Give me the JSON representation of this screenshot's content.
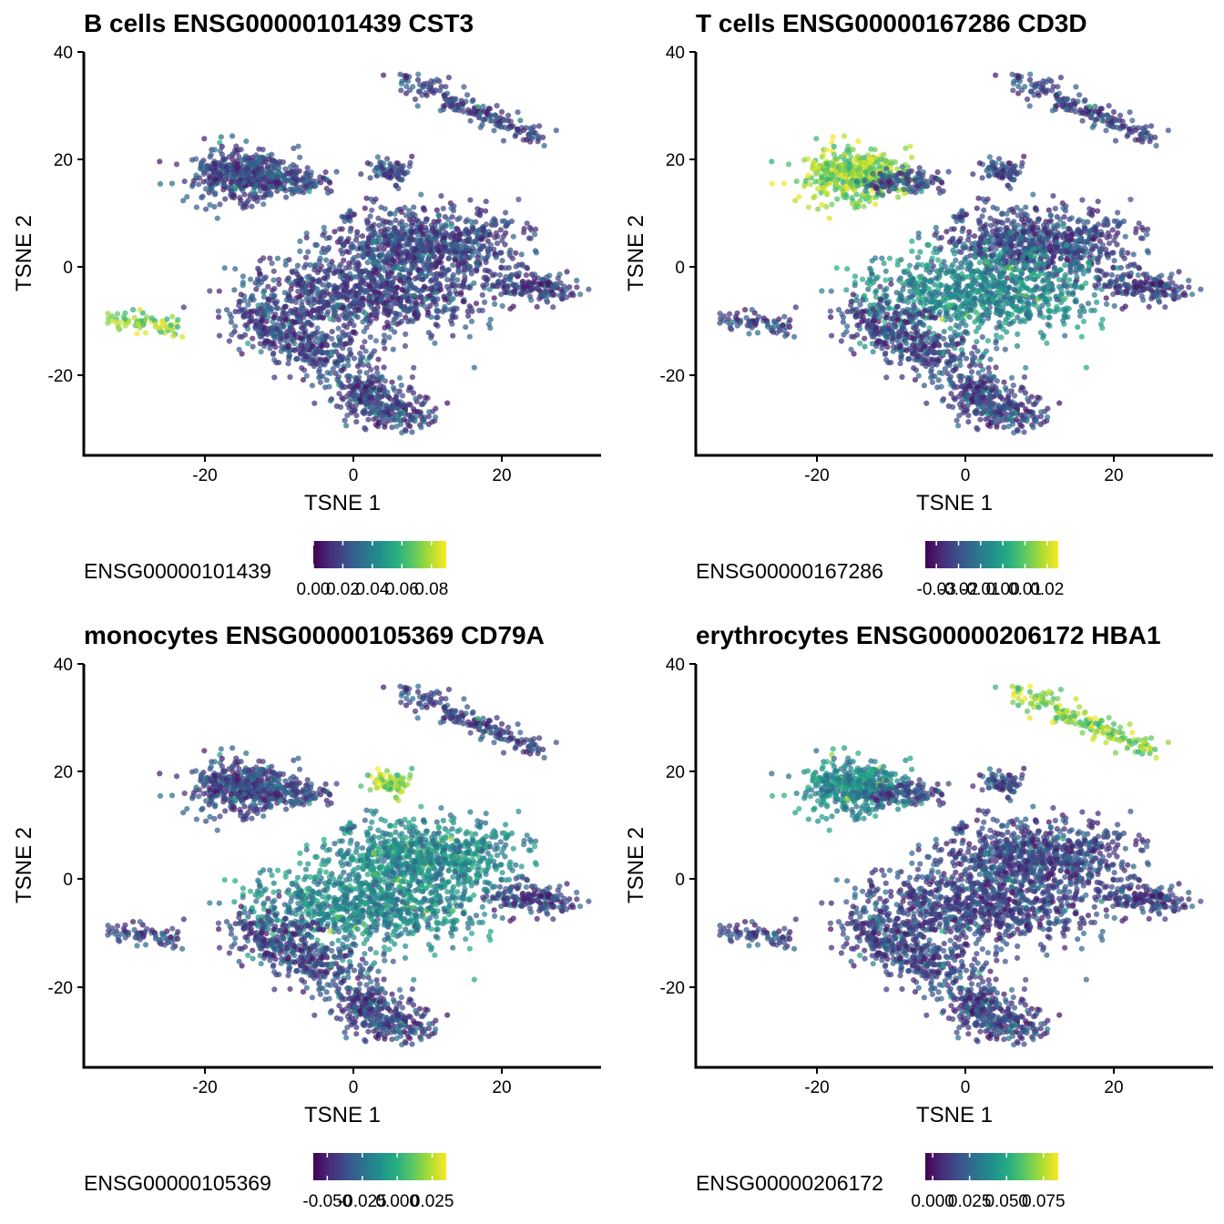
{
  "chart_data": [
    {
      "type": "scatter",
      "title": "B cells ENSG00000101439 CST3",
      "xlabel": "TSNE 1",
      "ylabel": "TSNE 2",
      "xticks": [
        "-20",
        "0",
        "20"
      ],
      "yticks": [
        "-20",
        "0",
        "20",
        "40"
      ],
      "legend": {
        "title": "ENSG00000101439",
        "ticks": [
          "0.00",
          "0.02",
          "0.04",
          "0.06",
          "0.08"
        ],
        "range": [
          0,
          0.09
        ]
      },
      "high_clusters": [
        "left-small"
      ],
      "mid_clusters": []
    },
    {
      "type": "scatter",
      "title": "T cells ENSG00000167286 CD3D",
      "xlabel": "TSNE 1",
      "ylabel": "TSNE 2",
      "xticks": [
        "-20",
        "0",
        "20"
      ],
      "yticks": [
        "-20",
        "0",
        "20",
        "40"
      ],
      "legend": {
        "title": "ENSG00000167286",
        "ticks": [
          "-0.03",
          "-0.02",
          "-0.01",
          "0.00",
          "0.01",
          "0.02"
        ],
        "range": [
          -0.035,
          0.025
        ]
      },
      "high_clusters": [
        "upper-left"
      ],
      "mid_clusters": [
        "main-mid"
      ]
    },
    {
      "type": "scatter",
      "title": "monocytes ENSG00000105369 CD79A",
      "xlabel": "TSNE 1",
      "ylabel": "TSNE 2",
      "xticks": [
        "-20",
        "0",
        "20"
      ],
      "yticks": [
        "-20",
        "0",
        "20",
        "40"
      ],
      "legend": {
        "title": "ENSG00000105369",
        "ticks": [
          "-0.050",
          "-0.025",
          "0.000",
          "0.025"
        ],
        "range": [
          -0.06,
          0.035
        ]
      },
      "high_clusters": [
        "small-round"
      ],
      "mid_clusters": [
        "main-mid",
        "main-top"
      ]
    },
    {
      "type": "scatter",
      "title": "erythrocytes ENSG00000206172 HBA1",
      "xlabel": "TSNE 1",
      "ylabel": "TSNE 2",
      "xticks": [
        "-20",
        "0",
        "20"
      ],
      "yticks": [
        "-20",
        "0",
        "20",
        "40"
      ],
      "legend": {
        "title": "ENSG00000206172",
        "ticks": [
          "0.000",
          "0.025",
          "0.050",
          "0.075"
        ],
        "range": [
          -0.005,
          0.085
        ]
      },
      "high_clusters": [
        "streak"
      ],
      "mid_clusters": [
        "upper-left"
      ]
    }
  ],
  "clusters": [
    {
      "name": "streak",
      "x": [
        7,
        25
      ],
      "y": [
        35,
        24
      ],
      "spread": 1.2,
      "n": 180
    },
    {
      "name": "upper-left",
      "x": [
        -18,
        -12
      ],
      "y": [
        17,
        17
      ],
      "spread": 3.2,
      "n": 420
    },
    {
      "name": "upper-left-tail",
      "x": [
        -12,
        -4
      ],
      "y": [
        16,
        16
      ],
      "spread": 1.6,
      "n": 110
    },
    {
      "name": "small-round",
      "x": [
        5,
        5
      ],
      "y": [
        17.5,
        17.5
      ],
      "spread": 1.6,
      "n": 70
    },
    {
      "name": "tiny-dot",
      "x": [
        -1,
        -1
      ],
      "y": [
        9.3,
        9.3
      ],
      "spread": 0.4,
      "n": 6
    },
    {
      "name": "left-small",
      "x": [
        -32,
        -24
      ],
      "y": [
        -10,
        -11
      ],
      "spread": 1.1,
      "n": 70
    },
    {
      "name": "main-top",
      "x": [
        2,
        18
      ],
      "y": [
        5,
        4
      ],
      "spread": 4,
      "n": 700
    },
    {
      "name": "main-mid",
      "x": [
        -8,
        12
      ],
      "y": [
        -5,
        -5
      ],
      "spread": 5,
      "n": 900
    },
    {
      "name": "main-right",
      "x": [
        20,
        29
      ],
      "y": [
        -3,
        -4
      ],
      "spread": 1.8,
      "n": 160
    },
    {
      "name": "main-lower",
      "x": [
        -15,
        -2
      ],
      "y": [
        -8,
        -18
      ],
      "spread": 3,
      "n": 380
    },
    {
      "name": "main-bottom",
      "x": [
        0,
        7
      ],
      "y": [
        -22,
        -28
      ],
      "spread": 2.5,
      "n": 320
    }
  ],
  "colors": {
    "viridis": [
      "#440154",
      "#472c7a",
      "#3b518b",
      "#2c718e",
      "#21908d",
      "#27ad81",
      "#5cc863",
      "#aadc32",
      "#fde725"
    ],
    "axis": "#000000"
  }
}
